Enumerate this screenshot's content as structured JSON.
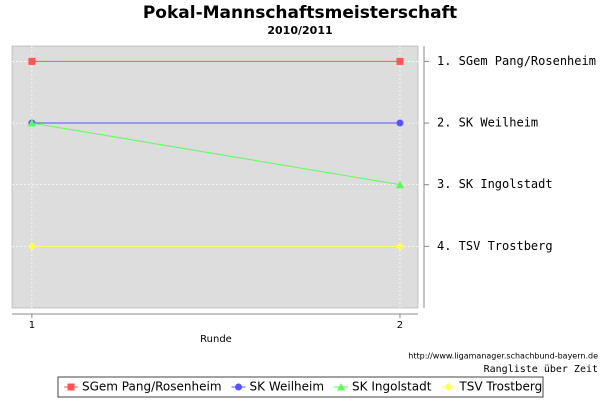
{
  "chart_data": {
    "type": "line",
    "title": "Pokal-Mannschaftsmeisterschaft",
    "subtitle": "2010/2011",
    "x_label": "Runde",
    "x": [
      1,
      2
    ],
    "xlim": [
      0.946,
      2.049
    ],
    "xticks": [
      1,
      2
    ],
    "ylim": [
      0.75,
      5
    ],
    "y_inverted": true,
    "y_axis_side": "right",
    "yticks": [
      {
        "value": 1,
        "label": "1. SGem Pang/Rosenheim"
      },
      {
        "value": 2,
        "label": "2. SK Weilheim"
      },
      {
        "value": 3,
        "label": "3. SK Ingolstadt"
      },
      {
        "value": 4,
        "label": "4. TSV Trostberg"
      }
    ],
    "grid": true,
    "legend": "bottom",
    "series": [
      {
        "name": "SGem Pang/Rosenheim",
        "color": "#ff5555",
        "marker": "square",
        "values": [
          1,
          1
        ]
      },
      {
        "name": "SK Weilheim",
        "color": "#5555ff",
        "marker": "circle",
        "values": [
          2,
          2
        ]
      },
      {
        "name": "SK Ingolstadt",
        "color": "#55ff55",
        "marker": "triangle",
        "values": [
          2,
          3
        ]
      },
      {
        "name": "TSV Trostberg",
        "color": "#ffff55",
        "marker": "diamond",
        "values": [
          4,
          4
        ]
      }
    ],
    "source": "http://www.ligamanager.schachbund-bayern.de",
    "caption": "Rangliste über Zeit"
  }
}
